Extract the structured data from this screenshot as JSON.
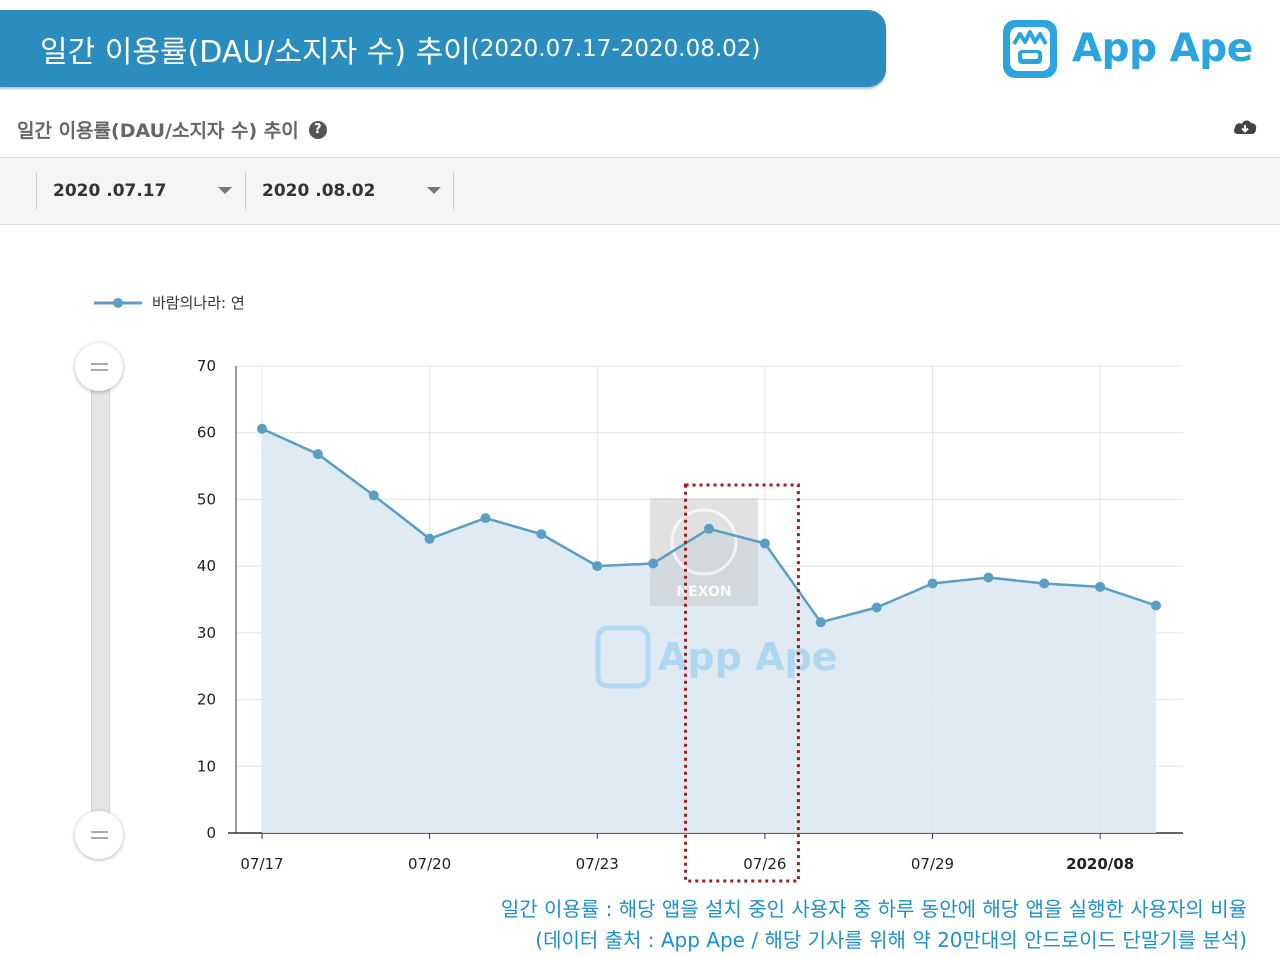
{
  "header": {
    "title_main": "일간 이용률(DAU/소지자 수) 추이",
    "title_range": "(2020.07.17-2020.08.02)",
    "logo_text": "App Ape"
  },
  "section": {
    "title": "일간 이용률(DAU/소지자 수) 추이",
    "help_icon": "question-circle-icon",
    "download_icon": "cloud-download-icon"
  },
  "filters": {
    "start_date": "2020 .07.17",
    "end_date": "2020 .08.02"
  },
  "watermark": {
    "publisher_logo_text": "NEXON",
    "app_logo_text": "App Ape"
  },
  "chart_data": {
    "type": "area",
    "title": "일간 이용률(DAU/소지자 수) 추이",
    "series": [
      {
        "name": "바람의나라: 연",
        "color": "#5a9ec4",
        "fill": "#dce8f2",
        "values": [
          60.6,
          56.8,
          50.6,
          44.1,
          47.2,
          44.8,
          40.0,
          40.4,
          45.6,
          43.4,
          31.6,
          33.8,
          37.4,
          38.3,
          37.4,
          36.9,
          34.1
        ]
      }
    ],
    "x": [
      "07/17",
      "07/18",
      "07/19",
      "07/20",
      "07/21",
      "07/22",
      "07/23",
      "07/24",
      "07/25",
      "07/26",
      "07/27",
      "07/28",
      "07/29",
      "07/30",
      "07/31",
      "08/01",
      "08/02"
    ],
    "x_tick_labels": [
      "07/17",
      "07/20",
      "07/23",
      "07/26",
      "07/29",
      "2020/08"
    ],
    "y_ticks": [
      0,
      10,
      20,
      30,
      40,
      50,
      60,
      70
    ],
    "ylim": [
      0,
      70
    ],
    "xlabel": "",
    "ylabel": "",
    "grid": true,
    "legend": "top-left",
    "highlight_range": [
      "07/25",
      "07/26"
    ],
    "highlight_color": "#a31a1a"
  },
  "footnote": {
    "line1": "일간 이용률 : 해당 앱을 설치 중인 사용자 중 하루 동안에 해당 앱을 실행한 사용자의 비율",
    "line2": "(데이터 출처 : App Ape / 해당 기사를 위해 약 20만대의 안드로이드 단말기를 분석)"
  }
}
